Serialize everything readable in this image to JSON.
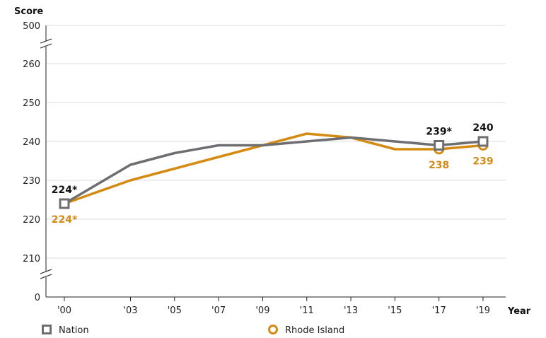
{
  "chart_data": {
    "type": "line",
    "ylabel": "Score",
    "xlabel": "Year",
    "categories": [
      "'00",
      "'03",
      "'05",
      "'07",
      "'09",
      "'11",
      "'13",
      "'15",
      "'17",
      "'19"
    ],
    "x": [
      2000,
      2003,
      2005,
      2007,
      2009,
      2011,
      2013,
      2015,
      2017,
      2019
    ],
    "y_ticks": [
      "0",
      "210",
      "220",
      "230",
      "240",
      "250",
      "260",
      "500"
    ],
    "ylim": [
      210,
      260
    ],
    "axis_breaks": [
      "0-210",
      "260-500"
    ],
    "grid": true,
    "legend_placement": "bottom",
    "series": [
      {
        "name": "Nation",
        "color": "#6d6e71",
        "marker": "square",
        "values": [
          224,
          234,
          237,
          239,
          239,
          240,
          241,
          240,
          239,
          240
        ],
        "labels": [
          {
            "x": 2000,
            "value": 224,
            "text": "224*"
          },
          {
            "x": 2017,
            "value": 239,
            "text": "239*"
          },
          {
            "x": 2019,
            "value": 240,
            "text": "240"
          }
        ]
      },
      {
        "name": "Rhode Island",
        "color": "#d58a12",
        "marker": "circle",
        "values": [
          224,
          230,
          233,
          236,
          239,
          242,
          241,
          238,
          238,
          239
        ],
        "labels": [
          {
            "x": 2000,
            "value": 224,
            "text": "224*"
          },
          {
            "x": 2017,
            "value": 238,
            "text": "238"
          },
          {
            "x": 2019,
            "value": 239,
            "text": "239"
          }
        ]
      }
    ]
  }
}
